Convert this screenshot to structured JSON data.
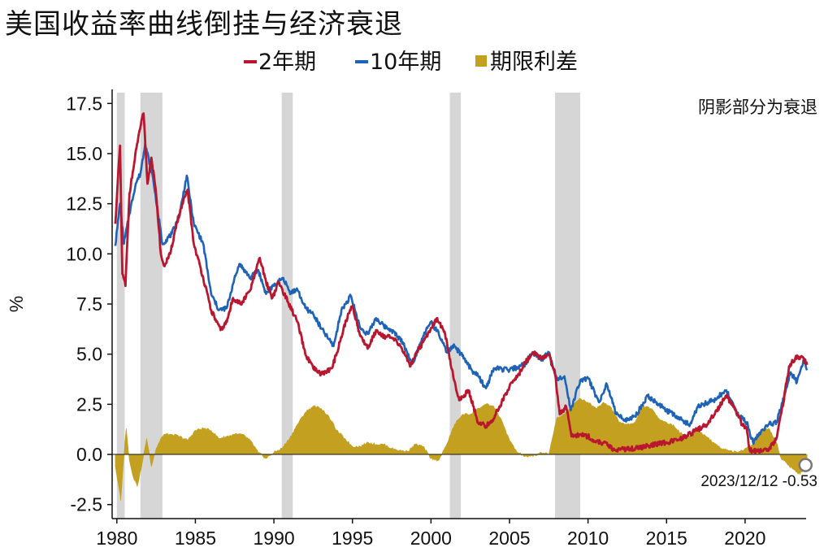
{
  "chart_data": {
    "type": "line",
    "title": "美国收益率曲线倒挂与经济衰退",
    "ylabel": "%",
    "ylim": [
      -3.2,
      18.2
    ],
    "xlim": [
      1979.7,
      2024.3
    ],
    "yticks": [
      -2.5,
      0.0,
      2.5,
      5.0,
      7.5,
      10.0,
      12.5,
      15.0,
      17.5
    ],
    "ytick_labels": [
      "-2.5",
      "0.0",
      "2.5",
      "5.0",
      "7.5",
      "10.0",
      "12.5",
      "15.0",
      "17.5"
    ],
    "xticks": [
      1980,
      1985,
      1990,
      1995,
      2000,
      2005,
      2010,
      2015,
      2020
    ],
    "xtick_labels": [
      "1980",
      "1985",
      "1990",
      "1995",
      "2000",
      "2005",
      "2010",
      "2015",
      "2020"
    ],
    "legend": {
      "position": "top",
      "items": [
        "2年期",
        "10年期",
        "期限利差"
      ]
    },
    "note": "阴影部分为衰退",
    "annotation": {
      "text": "2023/12/12 -0.53",
      "x": 2023.95,
      "y": -0.53
    },
    "recessions": [
      [
        1980.0,
        1980.5
      ],
      [
        1981.5,
        1982.9
      ],
      [
        1990.5,
        1991.2
      ],
      [
        2001.2,
        2001.9
      ],
      [
        2007.9,
        2009.5
      ]
    ],
    "colors": {
      "two_year": "#b8172f",
      "ten_year": "#1f63b6",
      "spread": "#c4a020",
      "recession": "#d6d6d6"
    },
    "series": [
      {
        "name": "2年期",
        "x": [
          1979.9,
          1980.2,
          1980.35,
          1980.55,
          1980.8,
          1981.1,
          1981.4,
          1981.7,
          1981.95,
          1982.2,
          1982.5,
          1982.8,
          1983.0,
          1983.4,
          1983.8,
          1984.2,
          1984.5,
          1984.9,
          1985.5,
          1986.0,
          1986.6,
          1987.0,
          1987.4,
          1987.9,
          1988.5,
          1989.1,
          1989.5,
          1989.9,
          1990.3,
          1990.9,
          1991.5,
          1992.0,
          1992.5,
          1993.0,
          1993.7,
          1994.2,
          1994.6,
          1995.0,
          1995.5,
          1996.0,
          1996.5,
          1997.0,
          1997.5,
          1998.0,
          1998.7,
          1999.0,
          1999.5,
          2000.0,
          2000.4,
          2000.9,
          2001.3,
          2001.8,
          2002.4,
          2003.0,
          2003.5,
          2004.0,
          2004.5,
          2005.0,
          2005.6,
          2006.0,
          2006.5,
          2007.0,
          2007.5,
          2007.9,
          2008.2,
          2008.6,
          2008.95,
          2009.5,
          2010.0,
          2010.5,
          2011.0,
          2011.6,
          2012.0,
          2013.0,
          2014.0,
          2015.0,
          2016.0,
          2017.0,
          2017.6,
          2018.2,
          2018.8,
          2019.3,
          2019.8,
          2020.1,
          2020.3,
          2020.8,
          2021.5,
          2022.0,
          2022.4,
          2022.8,
          2023.2,
          2023.6,
          2023.95
        ],
        "values": [
          11.5,
          15.4,
          9.0,
          8.4,
          13.0,
          14.5,
          16.0,
          17.0,
          13.5,
          14.8,
          13.0,
          10.0,
          9.4,
          10.0,
          11.5,
          12.5,
          13.2,
          10.5,
          8.8,
          7.2,
          6.2,
          6.6,
          7.8,
          7.5,
          8.2,
          9.8,
          8.6,
          7.8,
          8.6,
          7.6,
          6.6,
          5.0,
          4.3,
          4.0,
          4.3,
          5.6,
          6.7,
          7.4,
          5.9,
          5.3,
          6.2,
          5.9,
          5.8,
          5.5,
          4.4,
          5.0,
          5.6,
          6.3,
          6.8,
          6.0,
          4.3,
          2.7,
          3.2,
          1.6,
          1.4,
          1.8,
          2.6,
          3.4,
          4.0,
          4.6,
          5.1,
          4.8,
          5.0,
          4.0,
          2.0,
          2.4,
          0.9,
          1.0,
          0.9,
          0.6,
          0.6,
          0.25,
          0.25,
          0.3,
          0.45,
          0.6,
          0.8,
          1.25,
          1.5,
          2.2,
          2.9,
          2.4,
          1.5,
          1.3,
          0.2,
          0.15,
          0.2,
          0.8,
          2.4,
          4.4,
          4.8,
          4.9,
          4.47
        ]
      },
      {
        "name": "10年期",
        "x": [
          1979.9,
          1980.2,
          1980.45,
          1980.8,
          1981.2,
          1981.5,
          1981.8,
          1982.3,
          1982.9,
          1983.5,
          1984.0,
          1984.45,
          1984.9,
          1985.5,
          1986.0,
          1986.5,
          1987.0,
          1987.4,
          1987.8,
          1988.5,
          1989.0,
          1989.5,
          1990.0,
          1990.6,
          1991.0,
          1991.5,
          1992.0,
          1992.5,
          1993.0,
          1993.8,
          1994.3,
          1994.9,
          1995.5,
          1996.0,
          1996.5,
          1997.0,
          1997.5,
          1998.2,
          1998.8,
          1999.5,
          2000.0,
          2000.5,
          2001.0,
          2001.5,
          2002.0,
          2002.6,
          2003.0,
          2003.5,
          2004.0,
          2005.0,
          2006.0,
          2006.5,
          2007.0,
          2007.5,
          2008.0,
          2008.5,
          2008.9,
          2009.5,
          2010.0,
          2010.7,
          2011.2,
          2011.8,
          2012.5,
          2013.0,
          2013.8,
          2014.5,
          2015.0,
          2016.0,
          2016.5,
          2017.0,
          2018.0,
          2018.8,
          2019.5,
          2020.1,
          2020.5,
          2021.0,
          2021.5,
          2022.0,
          2022.5,
          2022.9,
          2023.3,
          2023.75,
          2023.95
        ],
        "values": [
          10.4,
          12.5,
          10.5,
          12.0,
          13.5,
          14.0,
          15.5,
          13.8,
          10.5,
          11.0,
          12.0,
          13.9,
          11.5,
          10.5,
          8.0,
          7.2,
          7.3,
          8.5,
          9.5,
          8.8,
          9.2,
          8.0,
          8.4,
          8.8,
          8.1,
          8.2,
          7.3,
          7.0,
          6.3,
          5.4,
          7.2,
          7.9,
          6.3,
          6.0,
          6.8,
          6.4,
          6.2,
          5.6,
          4.5,
          5.9,
          6.6,
          6.0,
          5.1,
          5.4,
          4.9,
          4.2,
          3.9,
          3.3,
          4.3,
          4.2,
          4.5,
          5.1,
          4.7,
          5.1,
          3.8,
          3.9,
          2.2,
          3.7,
          3.8,
          2.6,
          3.5,
          2.0,
          1.7,
          1.9,
          2.9,
          2.5,
          2.2,
          1.7,
          1.5,
          2.4,
          2.7,
          3.2,
          2.0,
          1.6,
          0.6,
          1.1,
          1.5,
          1.6,
          3.0,
          4.1,
          3.6,
          4.8,
          4.2
        ]
      },
      {
        "name": "期限利差",
        "x": [
          1979.9,
          1980.1,
          1980.25,
          1980.5,
          1980.6,
          1980.8,
          1981.0,
          1981.3,
          1981.6,
          1981.9,
          1982.2,
          1982.5,
          1982.8,
          1983.0,
          1983.5,
          1984.0,
          1984.5,
          1985.0,
          1985.5,
          1986.0,
          1986.5,
          1987.0,
          1987.5,
          1988.0,
          1988.5,
          1989.0,
          1989.5,
          1990.0,
          1990.5,
          1991.0,
          1991.5,
          1992.0,
          1992.5,
          1993.0,
          1993.5,
          1994.0,
          1994.5,
          1995.0,
          1995.5,
          1996.0,
          1996.5,
          1997.0,
          1997.5,
          1998.0,
          1998.5,
          1999.0,
          1999.5,
          2000.0,
          2000.5,
          2001.0,
          2001.5,
          2002.0,
          2002.5,
          2003.0,
          2003.5,
          2004.0,
          2004.5,
          2005.0,
          2005.5,
          2006.0,
          2006.5,
          2007.0,
          2007.5,
          2008.0,
          2008.5,
          2009.0,
          2009.5,
          2010.0,
          2010.5,
          2011.0,
          2011.5,
          2012.0,
          2012.5,
          2013.0,
          2013.5,
          2014.0,
          2014.5,
          2015.0,
          2015.5,
          2016.0,
          2016.5,
          2017.0,
          2017.5,
          2018.0,
          2018.5,
          2019.0,
          2019.5,
          2020.0,
          2020.5,
          2021.0,
          2021.5,
          2022.0,
          2022.3,
          2022.6,
          2023.0,
          2023.5,
          2023.95
        ],
        "values": [
          -0.6,
          -1.5,
          -2.3,
          0.5,
          1.3,
          -0.3,
          -1.0,
          -1.6,
          -0.5,
          0.8,
          -0.6,
          0.3,
          0.8,
          1.0,
          1.0,
          0.9,
          0.7,
          1.2,
          1.3,
          1.2,
          0.8,
          0.9,
          1.0,
          1.0,
          0.7,
          0.1,
          -0.2,
          0.1,
          0.3,
          0.8,
          1.5,
          2.1,
          2.4,
          2.3,
          1.9,
          1.2,
          0.8,
          0.4,
          0.4,
          0.6,
          0.5,
          0.5,
          0.3,
          0.2,
          0.15,
          0.5,
          0.4,
          -0.2,
          -0.3,
          0.5,
          1.5,
          2.0,
          2.0,
          2.3,
          2.5,
          2.4,
          1.7,
          0.7,
          0.1,
          -0.1,
          -0.1,
          0.1,
          0.0,
          1.8,
          2.0,
          2.5,
          2.8,
          2.6,
          2.3,
          2.6,
          2.3,
          1.6,
          1.5,
          1.6,
          2.4,
          2.3,
          1.8,
          1.6,
          1.4,
          1.0,
          0.9,
          1.2,
          0.9,
          0.6,
          0.3,
          0.2,
          0.1,
          0.3,
          0.5,
          1.2,
          1.3,
          0.6,
          -0.2,
          -0.4,
          -0.7,
          -1.0,
          -0.53
        ]
      }
    ]
  }
}
